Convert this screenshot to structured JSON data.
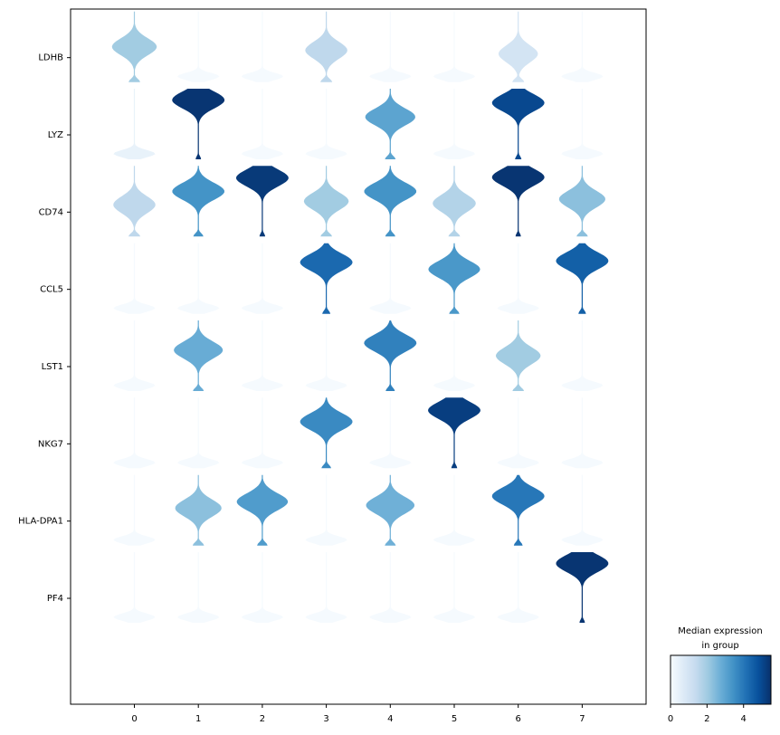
{
  "chart_data": {
    "type": "stacked-violin",
    "categories": [
      "0",
      "1",
      "2",
      "3",
      "4",
      "5",
      "6",
      "7"
    ],
    "genes": [
      "LDHB",
      "LYZ",
      "CD74",
      "CCL5",
      "LST1",
      "NKG7",
      "HLA-DPA1",
      "PF4"
    ],
    "median_expression": [
      [
        2.0,
        0.05,
        0.05,
        1.5,
        0.05,
        0.05,
        1.0,
        0.05
      ],
      [
        0.4,
        5.4,
        0.05,
        0.05,
        3.0,
        0.05,
        5.0,
        0.05
      ],
      [
        1.5,
        3.4,
        5.3,
        2.0,
        3.4,
        1.7,
        5.4,
        2.3
      ],
      [
        0.05,
        0.05,
        0.05,
        4.3,
        0.05,
        3.3,
        0.05,
        4.5
      ],
      [
        0.05,
        2.8,
        0.05,
        0.05,
        3.8,
        0.05,
        2.0,
        0.05
      ],
      [
        0.05,
        0.05,
        0.05,
        3.6,
        0.05,
        5.2,
        0.05,
        0.05
      ],
      [
        0.05,
        2.3,
        3.2,
        0.05,
        2.7,
        0.05,
        4.0,
        0.05
      ],
      [
        0.05,
        0.05,
        0.05,
        0.05,
        0.05,
        0.05,
        0.05,
        5.4
      ]
    ],
    "colorbar": {
      "title_line1": "Median expression",
      "title_line2": "in group",
      "range": [
        0,
        5.5
      ],
      "ticks": [
        "0",
        "2",
        "4"
      ],
      "tick_values": [
        0,
        2,
        4
      ],
      "colors": [
        "#f7fbff",
        "#deebf7",
        "#c6dbef",
        "#9ecae1",
        "#6baed6",
        "#4292c6",
        "#2171b5",
        "#08519c",
        "#08306b"
      ]
    },
    "grid": false,
    "legend_position": "bottom-right"
  }
}
